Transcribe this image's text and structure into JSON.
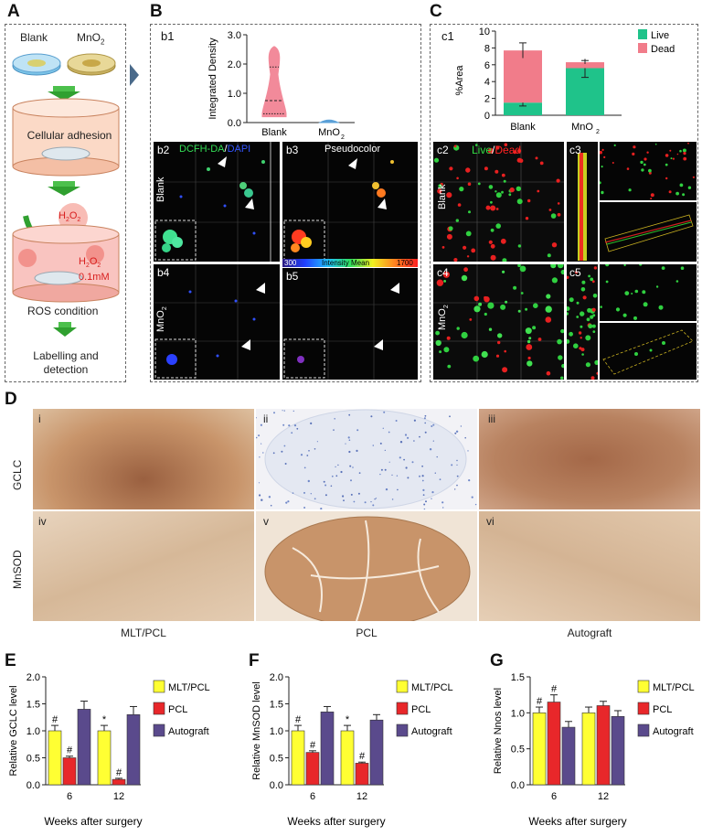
{
  "panel_A": {
    "letter": "A",
    "blank_label": "Blank",
    "mno2_label": "MnO",
    "mno2_sub": "2",
    "adhesion_label": "Cellular adhesion",
    "h2o2_label": "H",
    "h2o2_sub1": "2",
    "h2o2_o": "O",
    "h2o2_sub2": "2",
    "h2o2_conc_main": "H",
    "h2o2_conc_sub1": "2",
    "h2o2_conc_o": "O",
    "h2o2_conc_sub2": "2",
    "h2o2_conc_value": "0.1mM",
    "ros_label": "ROS condition",
    "labelling_line1": "Labelling and",
    "labelling_line2": "detection"
  },
  "panel_B": {
    "letter": "B",
    "b1": "b1",
    "b2": "b2",
    "b3": "b3",
    "b4": "b4",
    "b5": "b5",
    "dcfh": "DCFH-DA",
    "slash": "/",
    "dapi": "DAPI",
    "pseudocolor": "Pseudocolor",
    "blank_row": "Blank",
    "mno2_row": "MnO",
    "mno2_row_sub": "2",
    "scale_min": "300",
    "scale_title": "Intensity Mean",
    "scale_max": "1700"
  },
  "panel_C": {
    "letter": "C",
    "c1": "c1",
    "c2": "c2",
    "c3": "c3",
    "c4": "c4",
    "c5": "c5",
    "live": "Live",
    "slash": "/",
    "dead": "Dead",
    "blank_row": "Blank",
    "mno2_row": "MnO",
    "mno2_row_sub": "2"
  },
  "panel_D": {
    "letter": "D",
    "row1": "GCLC",
    "row2": "MnSOD",
    "col1": "MLT/PCL",
    "col2": "PCL",
    "col3": "Autograft",
    "tiles": [
      "i",
      "ii",
      "iii",
      "iv",
      "v",
      "vi"
    ]
  },
  "colors": {
    "yellow": "#ffff33",
    "red": "#e8272a",
    "purple": "#5a4a8c",
    "live_green": "#1fc38a",
    "dead_pink": "#f17c8a",
    "violin_pink": "#f28a9a",
    "violin_blue": "#5aa0d8",
    "ihc_brown": "#b08060",
    "ihc_blue": "#8fa0c8"
  },
  "chart_data": [
    {
      "id": "b1",
      "type": "violin",
      "categories": [
        "Blank",
        "MnO2"
      ],
      "ylabel": "Integrated Density",
      "ylim": [
        0,
        3.0
      ],
      "yticks": [
        "0.0",
        "1.0",
        "2.0",
        "3.0"
      ],
      "series": [
        {
          "category": "Blank",
          "min": 0.2,
          "q1": 0.3,
          "median": 0.75,
          "q3": 1.9,
          "max": 2.6
        },
        {
          "category": "MnO2",
          "min": 0.0,
          "q1": 0.01,
          "median": 0.03,
          "q3": 0.05,
          "max": 0.08
        }
      ]
    },
    {
      "id": "c1",
      "type": "bar",
      "stacked": true,
      "categories": [
        "Blank",
        "MnO2"
      ],
      "ylabel": "%Area",
      "ylim": [
        0,
        10
      ],
      "yticks": [
        "0",
        "2",
        "4",
        "6",
        "8",
        "10"
      ],
      "legend": "top-right",
      "series": [
        {
          "name": "Live",
          "values": [
            1.5,
            5.6
          ],
          "errors": [
            0.4,
            1.1
          ]
        },
        {
          "name": "Dead",
          "values": [
            6.2,
            0.7
          ],
          "errors": [
            0.9,
            0.2
          ]
        }
      ]
    },
    {
      "id": "E",
      "letter": "E",
      "type": "bar",
      "categories": [
        "6",
        "12"
      ],
      "xlabel": "Weeks after surgery",
      "ylabel": "Relative GCLC level",
      "ylim": [
        0,
        2.0
      ],
      "yticks": [
        "0.0",
        "0.5",
        "1.0",
        "1.5",
        "2.0"
      ],
      "legend": "right",
      "series": [
        {
          "name": "MLT/PCL",
          "values": [
            1.0,
            1.0
          ],
          "errors": [
            0.1,
            0.1
          ],
          "marks": [
            "#",
            "*"
          ]
        },
        {
          "name": "PCL",
          "values": [
            0.5,
            0.1
          ],
          "errors": [
            0.03,
            0.02
          ],
          "marks": [
            "#",
            "#"
          ]
        },
        {
          "name": "Autograft",
          "values": [
            1.4,
            1.3
          ],
          "errors": [
            0.15,
            0.15
          ],
          "marks": [
            "",
            ""
          ]
        }
      ]
    },
    {
      "id": "F",
      "letter": "F",
      "type": "bar",
      "categories": [
        "6",
        "12"
      ],
      "xlabel": "Weeks after surgery",
      "ylabel": "Relative MnSOD level",
      "ylim": [
        0,
        2.0
      ],
      "yticks": [
        "0.0",
        "0.5",
        "1.0",
        "1.5",
        "2.0"
      ],
      "legend": "right",
      "series": [
        {
          "name": "MLT/PCL",
          "values": [
            1.0,
            1.0
          ],
          "errors": [
            0.1,
            0.1
          ],
          "marks": [
            "#",
            "*"
          ]
        },
        {
          "name": "PCL",
          "values": [
            0.6,
            0.4
          ],
          "errors": [
            0.03,
            0.02
          ],
          "marks": [
            "#",
            "#"
          ]
        },
        {
          "name": "Autograft",
          "values": [
            1.35,
            1.2
          ],
          "errors": [
            0.1,
            0.1
          ],
          "marks": [
            "",
            ""
          ]
        }
      ]
    },
    {
      "id": "G",
      "letter": "G",
      "type": "bar",
      "categories": [
        "6",
        "12"
      ],
      "xlabel": "Weeks after surgery",
      "ylabel": "Relative Nnos level",
      "ylim": [
        0,
        1.5
      ],
      "yticks": [
        "0.0",
        "0.5",
        "1.0",
        "1.5"
      ],
      "legend": "right",
      "series": [
        {
          "name": "MLT/PCL",
          "values": [
            1.0,
            1.0
          ],
          "errors": [
            0.08,
            0.08
          ],
          "marks": [
            "#",
            ""
          ]
        },
        {
          "name": "PCL",
          "values": [
            1.15,
            1.1
          ],
          "errors": [
            0.1,
            0.06
          ],
          "marks": [
            "#",
            ""
          ]
        },
        {
          "name": "Autograft",
          "values": [
            0.8,
            0.95
          ],
          "errors": [
            0.08,
            0.08
          ],
          "marks": [
            "",
            ""
          ]
        }
      ]
    }
  ]
}
